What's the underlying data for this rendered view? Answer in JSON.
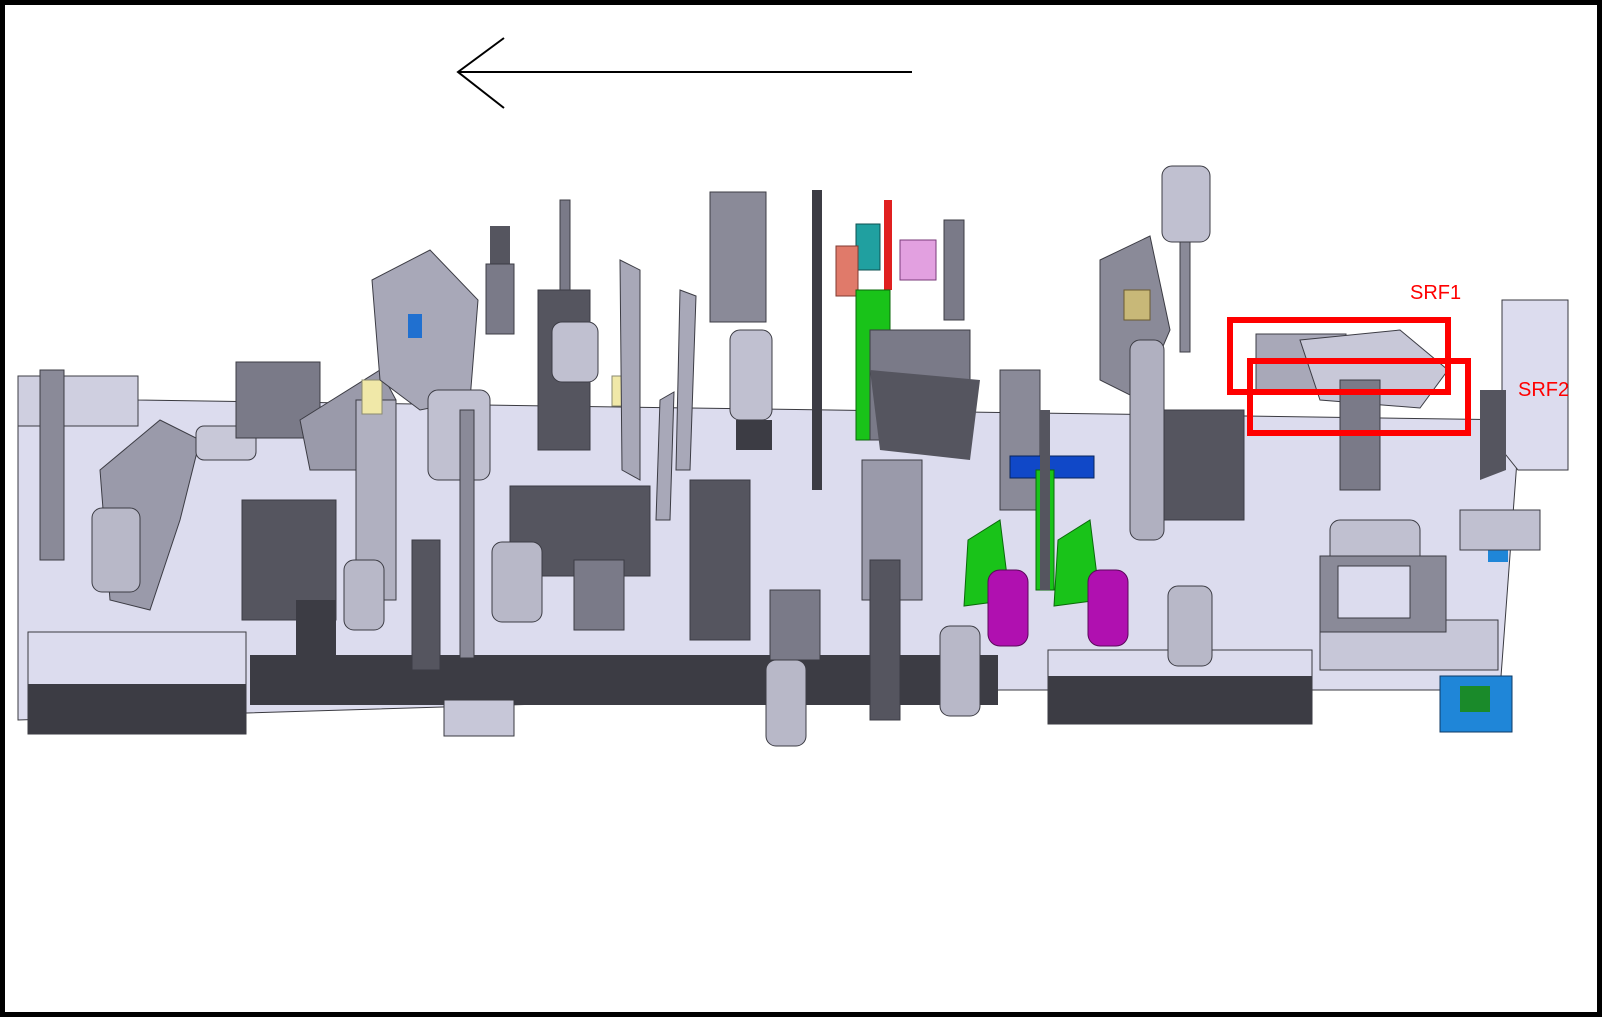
{
  "labels": {
    "srf1": "SRF1",
    "srf2": "SRF2"
  },
  "colors": {
    "frame": "#000000",
    "highlight": "#ff0000",
    "base_plate": "#dcdcee",
    "base_edge": "#3a3a40",
    "machine_dark": "#3c3c44",
    "machine_mid": "#8a8a98",
    "machine_light": "#cfcfe0",
    "green_part": "#19c319",
    "magenta_part": "#b010b0",
    "blue_part": "#1060d0",
    "teal_part": "#20a0a0",
    "red_part": "#e02020"
  },
  "icons": {
    "direction": "left-arrow-icon"
  }
}
